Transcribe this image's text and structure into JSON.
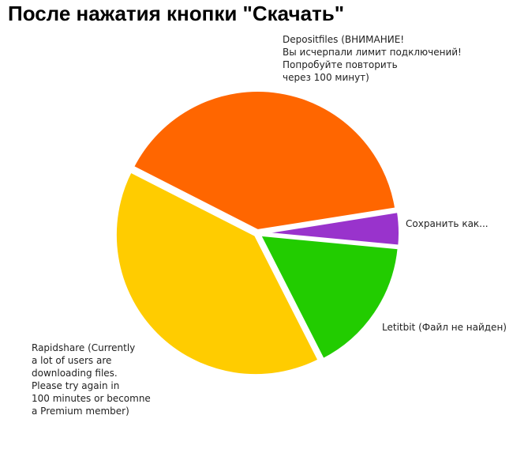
{
  "chart_data": {
    "type": "pie",
    "title": "После нажатия кнопки \"Скачать\"",
    "categories": [
      "Depositfiles (ВНИМАНИЕ!\nВы исчерпали лимит подключений!\nПопробуйте повторить\nчерез 100 минут)",
      "Сохранить как...",
      "Letitbit (Файл не найден)",
      "Rapidshare (Currently\na lot of users are\ndownloading files.\nPlease try again in\n100 minutes or becomne\na Premium member)"
    ],
    "values": [
      40,
      4,
      16,
      40
    ],
    "colors": [
      "#ff6600",
      "#9933cc",
      "#22cc00",
      "#ffcc00"
    ]
  }
}
